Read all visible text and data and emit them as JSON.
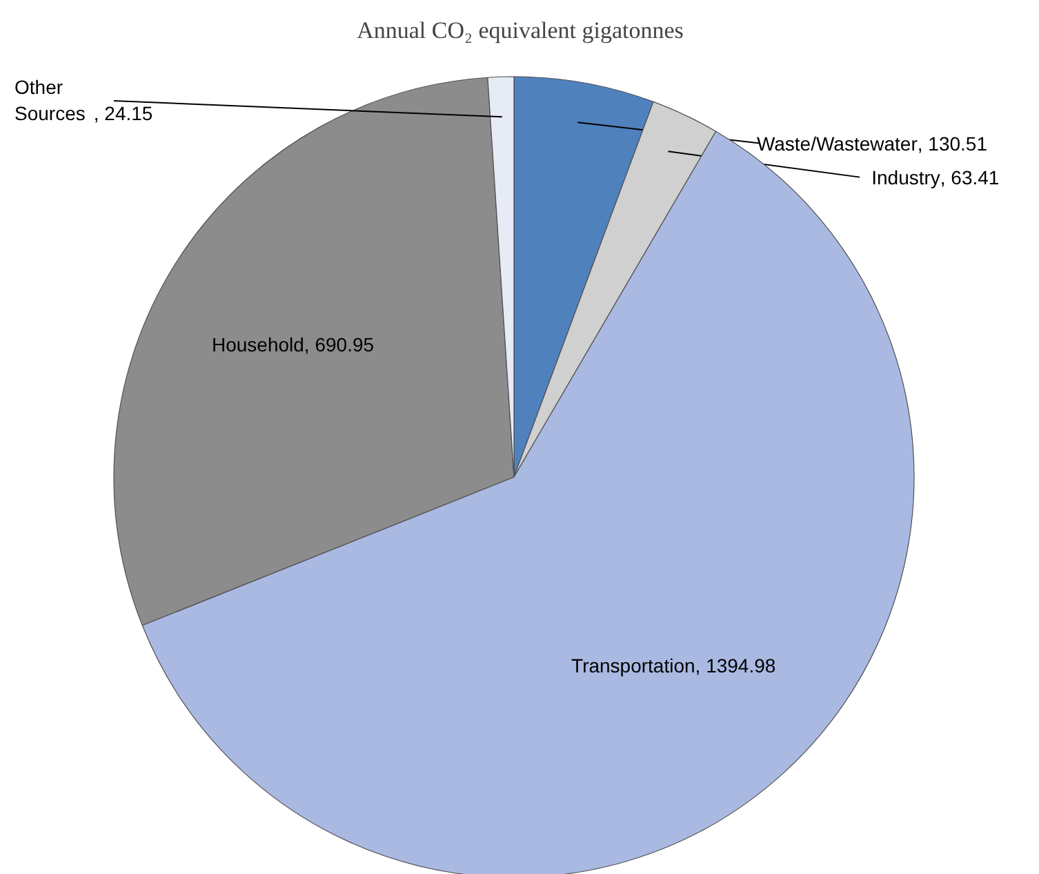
{
  "chart_data": {
    "type": "pie",
    "title": "Annual CO₂ equivalent gigatonnes",
    "categories": [
      "Waste/Wastewater",
      "Industry",
      "Transportation",
      "Household",
      "Other Sources"
    ],
    "values": [
      130.51,
      63.41,
      1394.98,
      690.95,
      24.15
    ],
    "colors": [
      "#4f81bd",
      "#d0d0d0",
      "#a9b9e2",
      "#8c8c8c",
      "#e6ebf5"
    ],
    "value_labels": [
      ", 130.51",
      ", 63.41",
      ", 1394.98",
      ", 690.95",
      ", 24.15"
    ]
  }
}
